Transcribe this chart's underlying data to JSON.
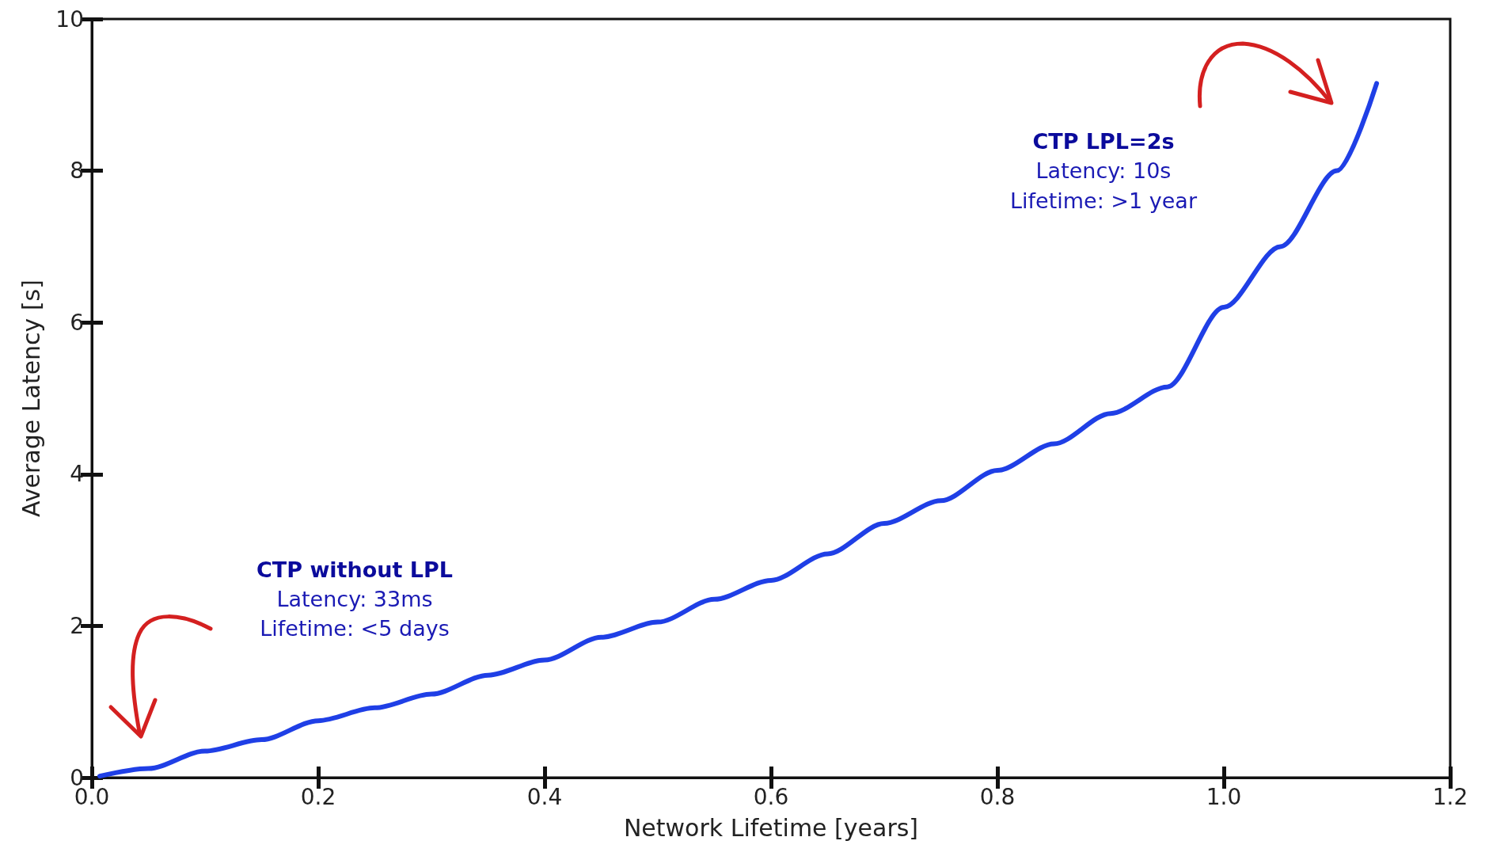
{
  "chart_data": {
    "type": "line",
    "xlabel": "Network Lifetime [years]",
    "ylabel": "Average Latency [s]",
    "annotations": [
      "CTP without LPL",
      "Latency: 33ms",
      "Lifetime: <5 days",
      "CTP LPL=2s",
      "Latency: 10s",
      "Lifetime: >1 year"
    ],
    "x": [
      0.007,
      0.05,
      0.1,
      0.15,
      0.2,
      0.25,
      0.3,
      0.35,
      0.4,
      0.45,
      0.5,
      0.55,
      0.6,
      0.65,
      0.7,
      0.75,
      0.8,
      0.85,
      0.9,
      0.95,
      1.0,
      1.05,
      1.1,
      1.135
    ],
    "series": [
      {
        "color": "#1f3fe6",
        "values": [
          0.02,
          0.12,
          0.35,
          0.5,
          0.75,
          0.92,
          1.1,
          1.35,
          1.55,
          1.85,
          2.05,
          2.35,
          2.6,
          2.95,
          3.35,
          3.65,
          4.05,
          4.4,
          4.8,
          5.15,
          6.2,
          7.0,
          8.0,
          9.15
        ]
      }
    ],
    "xlim": [
      0,
      1.2
    ],
    "xticks": [
      {
        "value": 0,
        "label": "0.0"
      },
      {
        "value": 0.2,
        "label": "0.2"
      },
      {
        "value": 0.4,
        "label": "0.4"
      },
      {
        "value": 0.6,
        "label": "0.6"
      },
      {
        "value": 0.8,
        "label": "0.8"
      },
      {
        "value": 1,
        "label": "1.0"
      },
      {
        "value": 1.2,
        "label": "1.2"
      }
    ],
    "ylim": [
      0,
      10
    ],
    "yticks": [
      0,
      2,
      4,
      6,
      8,
      10
    ],
    "grid": false,
    "marker": "none",
    "line_style": "solid"
  }
}
